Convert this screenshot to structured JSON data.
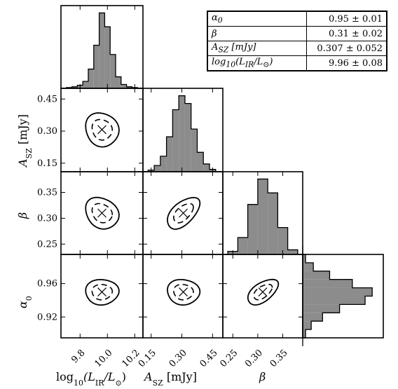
{
  "chart_data": [
    {
      "type": "histogram",
      "panel": "log_LIR marginal",
      "x": [
        9.68,
        9.72,
        9.76,
        9.8,
        9.84,
        9.88,
        9.92,
        9.96,
        10.0,
        10.04,
        10.08,
        10.12,
        10.16,
        10.2,
        10.24
      ],
      "values": [
        0.0,
        0.01,
        0.02,
        0.04,
        0.09,
        0.25,
        0.56,
        0.98,
        0.8,
        0.44,
        0.15,
        0.05,
        0.02,
        0.01,
        0.0
      ]
    },
    {
      "type": "histogram",
      "panel": "A_SZ marginal",
      "x": [
        0.12,
        0.15,
        0.18,
        0.21,
        0.24,
        0.27,
        0.3,
        0.33,
        0.36,
        0.39,
        0.42,
        0.45,
        0.48
      ],
      "values": [
        0.0,
        0.02,
        0.08,
        0.2,
        0.45,
        0.8,
        0.98,
        0.88,
        0.55,
        0.25,
        0.1,
        0.03,
        0.0
      ]
    },
    {
      "type": "histogram",
      "panel": "beta marginal",
      "x": [
        0.23,
        0.25,
        0.27,
        0.29,
        0.31,
        0.33,
        0.35,
        0.37,
        0.39
      ],
      "values": [
        0.0,
        0.04,
        0.22,
        0.65,
        0.98,
        0.8,
        0.35,
        0.06,
        0.0
      ]
    },
    {
      "type": "histogram",
      "panel": "alpha0 marginal (horizontal)",
      "y": [
        0.89,
        0.9,
        0.91,
        0.92,
        0.93,
        0.94,
        0.95,
        0.96,
        0.97,
        0.98,
        0.99,
        1.0
      ],
      "values": [
        0.0,
        0.04,
        0.12,
        0.28,
        0.52,
        0.88,
        0.98,
        0.7,
        0.38,
        0.15,
        0.04,
        0.0
      ]
    },
    {
      "type": "contour",
      "panel": "A_SZ vs log_LIR",
      "x_center": 9.96,
      "y_center": 0.307,
      "sigma_x": 0.08,
      "sigma_y": 0.052,
      "corr": -0.1,
      "levels": [
        "1sigma dashed",
        "2sigma solid"
      ]
    },
    {
      "type": "contour",
      "panel": "beta vs log_LIR",
      "x_center": 9.96,
      "y_center": 0.31,
      "sigma_x": 0.08,
      "sigma_y": 0.02,
      "corr": -0.2,
      "levels": [
        "1sigma dashed",
        "2sigma solid"
      ]
    },
    {
      "type": "contour",
      "panel": "beta vs A_SZ",
      "x_center": 0.307,
      "y_center": 0.31,
      "sigma_x": 0.052,
      "sigma_y": 0.02,
      "corr": 0.55,
      "levels": [
        "1sigma dashed",
        "2sigma solid"
      ]
    },
    {
      "type": "contour",
      "panel": "alpha0 vs log_LIR",
      "x_center": 9.96,
      "y_center": 0.95,
      "sigma_x": 0.08,
      "sigma_y": 0.01,
      "corr": 0.0,
      "levels": [
        "1sigma dashed",
        "2sigma solid"
      ]
    },
    {
      "type": "contour",
      "panel": "alpha0 vs A_SZ",
      "x_center": 0.307,
      "y_center": 0.95,
      "sigma_x": 0.052,
      "sigma_y": 0.01,
      "corr": -0.05,
      "levels": [
        "1sigma dashed",
        "2sigma solid"
      ]
    },
    {
      "type": "contour",
      "panel": "alpha0 vs beta",
      "x_center": 0.31,
      "y_center": 0.95,
      "sigma_x": 0.02,
      "sigma_y": 0.01,
      "corr": 0.55,
      "levels": [
        "1sigma dashed",
        "2sigma solid"
      ]
    }
  ],
  "axes": {
    "log_LIR": {
      "range": [
        9.66,
        10.26
      ],
      "ticks": [
        9.8,
        10.0,
        10.2
      ],
      "tick_labels": [
        "9.8",
        "10.0",
        "10.2"
      ]
    },
    "A_SZ": {
      "range": [
        0.11,
        0.5
      ],
      "ticks": [
        0.15,
        0.3,
        0.45
      ],
      "tick_labels": [
        "0.15",
        "0.30",
        "0.45"
      ]
    },
    "beta": {
      "range": [
        0.23,
        0.39
      ],
      "ticks": [
        0.25,
        0.3,
        0.35
      ],
      "tick_labels": [
        "0.25",
        "0.30",
        "0.35"
      ]
    },
    "alpha0": {
      "range": [
        0.895,
        0.995
      ],
      "ticks": [
        0.92,
        0.96
      ],
      "tick_labels": [
        "0.92",
        "0.96"
      ]
    }
  },
  "labels": {
    "xlabel_lir": {
      "pre": "log",
      "sub1": "10",
      "mid": "(L",
      "sub2": "IR",
      "mid2": "/L",
      "sub3": "⊙",
      "post": ")"
    },
    "xlabel_asz": {
      "pre": "A",
      "sub": "SZ",
      "post": " [mJy]"
    },
    "xlabel_beta": "β",
    "ylabel_asz": {
      "pre": "A",
      "sub": "SZ",
      "post": " [mJy]"
    },
    "ylabel_beta": "β",
    "ylabel_alpha": {
      "pre": "α",
      "sub": "0"
    }
  },
  "table": {
    "rows": [
      {
        "name_html": "α<sub>0</sub>",
        "value": "0.95 ± 0.01"
      },
      {
        "name_html": "β",
        "value": "0.31 ± 0.02"
      },
      {
        "name_html": "A<sub>SZ</sub> [mJy]",
        "value": "0.307 ± 0.052"
      },
      {
        "name_html": "log<sub>10</sub>(L<sub>IR</sub>/L<sub>⊙</sub>)",
        "value": "9.96 ± 0.08"
      }
    ]
  },
  "colors": {
    "hist_fill": "#8c8c8c",
    "line": "#000000"
  }
}
